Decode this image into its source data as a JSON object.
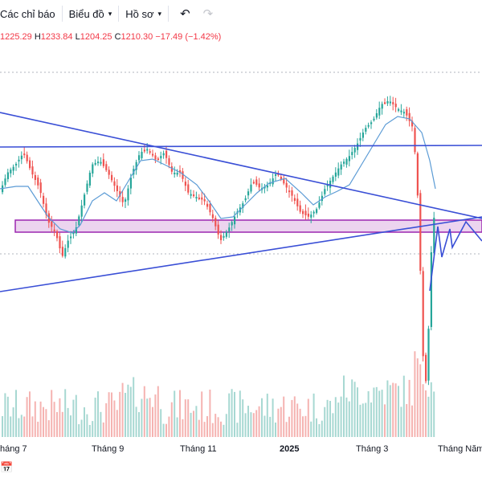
{
  "toolbar": {
    "indicators_label": "Các chỉ báo",
    "chart_type_label": "Biểu đồ",
    "profile_label": "Hồ sơ",
    "undo_icon": "undo-icon",
    "redo_icon": "redo-icon"
  },
  "ohlc": {
    "open": "1225.29",
    "high_prefix": "H",
    "high": "1233.84",
    "low_prefix": "L",
    "low": "1204.25",
    "close_prefix": "C",
    "close": "1210.30",
    "change": "−17.49",
    "change_pct": "(−1.42%)"
  },
  "time_axis": {
    "labels": [
      "háng 7",
      "Tháng 9",
      "Tháng 11",
      "2025",
      "Tháng 3",
      "Tháng Năm"
    ]
  },
  "colors": {
    "up": "#26a69a",
    "down": "#ef5350",
    "trendline": "#3a4fd6",
    "ma_line": "#5b9bd5",
    "zone_fill": "#ecd4ef",
    "zone_border": "#9c27b0"
  },
  "bottom_icon": "calendar-icon"
}
